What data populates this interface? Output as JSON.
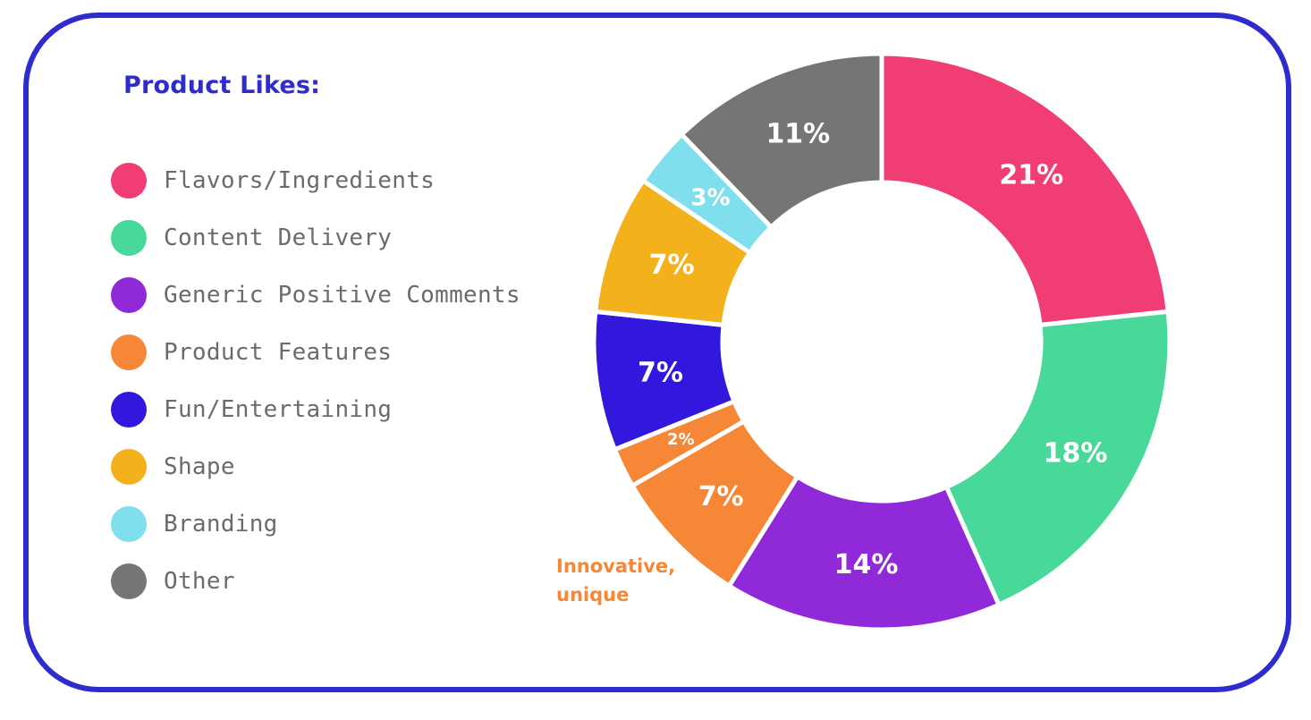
{
  "chart_data": {
    "type": "pie",
    "style": "donut",
    "title": "Product Likes:",
    "legend_position": "left",
    "slices": [
      {
        "label": "Flavors/Ingredients",
        "value": 21,
        "value_label": "21%",
        "color": "#f03e74"
      },
      {
        "label": "Content Delivery",
        "value": 18,
        "value_label": "18%",
        "color": "#48d99a"
      },
      {
        "label": "Generic Positive Comments",
        "value": 14,
        "value_label": "14%",
        "color": "#902ad8"
      },
      {
        "label": "Product Features",
        "value": 7,
        "value_label": "7%",
        "color": "#f68737",
        "annotation": [
          "Innovative,",
          "unique"
        ]
      },
      {
        "label": "Product Features",
        "value": 2,
        "value_label": "2%",
        "color": "#f68737"
      },
      {
        "label": "Fun/Entertaining",
        "value": 7,
        "value_label": "7%",
        "color": "#3218dc"
      },
      {
        "label": "Shape",
        "value": 7,
        "value_label": "7%",
        "color": "#f3b11b"
      },
      {
        "label": "Branding",
        "value": 3,
        "value_label": "3%",
        "color": "#7fdfec"
      },
      {
        "label": "Other",
        "value": 11,
        "value_label": "11%",
        "color": "#757575"
      }
    ]
  },
  "legend": {
    "title": "Product Likes:",
    "items": [
      {
        "label": "Flavors/Ingredients",
        "color": "#f03e74"
      },
      {
        "label": "Content Delivery",
        "color": "#48d99a"
      },
      {
        "label": "Generic Positive Comments",
        "color": "#902ad8"
      },
      {
        "label": "Product Features",
        "color": "#f68737"
      },
      {
        "label": "Fun/Entertaining",
        "color": "#3218dc"
      },
      {
        "label": "Shape",
        "color": "#f3b11b"
      },
      {
        "label": "Branding",
        "color": "#7fdfec"
      },
      {
        "label": "Other",
        "color": "#757575"
      }
    ]
  },
  "colors": {
    "border": "#2f2ccf",
    "title": "#2f2ccf",
    "legend_text": "#6b6b6b",
    "annotation": "#f68737"
  }
}
